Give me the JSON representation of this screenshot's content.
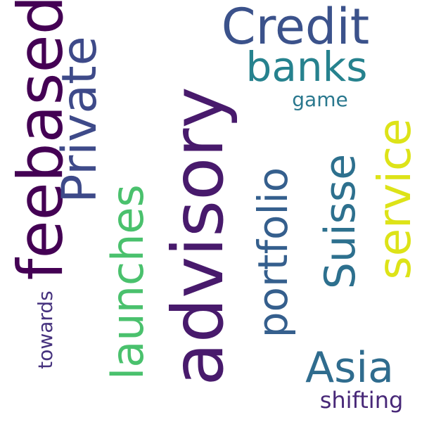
{
  "words": {
    "advisory": {
      "text": "advisory",
      "color": "#481a6c"
    },
    "feebased": {
      "text": "feebased",
      "color": "#440154"
    },
    "private": {
      "text": "Private",
      "color": "#3e4a89"
    },
    "credit": {
      "text": "Credit",
      "color": "#3b528b"
    },
    "banks": {
      "text": "banks",
      "color": "#26828e"
    },
    "game": {
      "text": "game",
      "color": "#2a788e"
    },
    "launches": {
      "text": "launches",
      "color": "#4ac16d"
    },
    "portfolio": {
      "text": "portfolio",
      "color": "#355f8d"
    },
    "suisse": {
      "text": "Suisse",
      "color": "#2d708e"
    },
    "service": {
      "text": "service",
      "color": "#dde318"
    },
    "asia": {
      "text": "Asia",
      "color": "#2f6c8e"
    },
    "shifting": {
      "text": "shifting",
      "color": "#482878"
    },
    "towards": {
      "text": "towards",
      "color": "#46327e"
    }
  }
}
